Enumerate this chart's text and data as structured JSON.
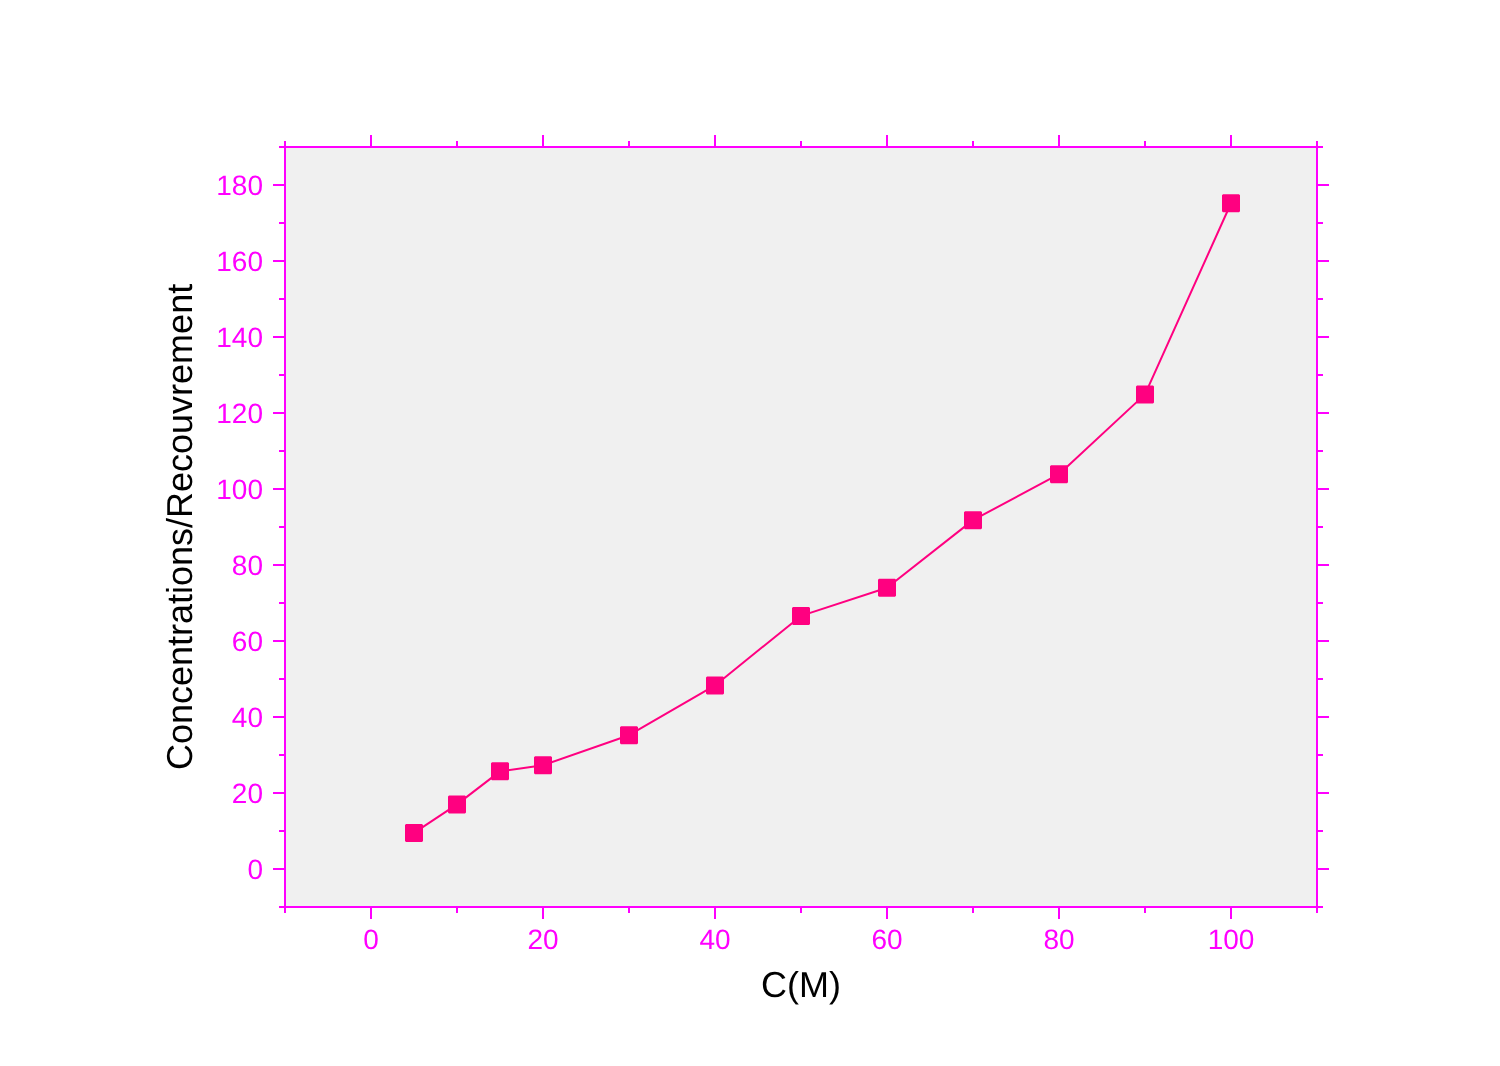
{
  "chart_data": {
    "type": "line",
    "xlabel": "C(M)",
    "ylabel": "Concentrations/Recouvrement",
    "x": [
      5,
      10,
      15,
      20,
      30,
      40,
      50,
      60,
      70,
      80,
      90,
      100
    ],
    "series": [
      {
        "color": "#ff0080",
        "values": [
          9.5,
          17,
          25.7,
          27.3,
          35.2,
          48.3,
          66.6,
          74,
          91.8,
          103.9,
          124.9,
          175.2
        ]
      }
    ],
    "xlim": [
      -10,
      110
    ],
    "ylim": [
      -10,
      190
    ],
    "xticks": [
      0,
      20,
      40,
      60,
      80,
      100
    ],
    "yticks": [
      0,
      20,
      40,
      60,
      80,
      100,
      120,
      140,
      160,
      180
    ],
    "grid": false,
    "marker": "square",
    "line_style": "solid"
  }
}
